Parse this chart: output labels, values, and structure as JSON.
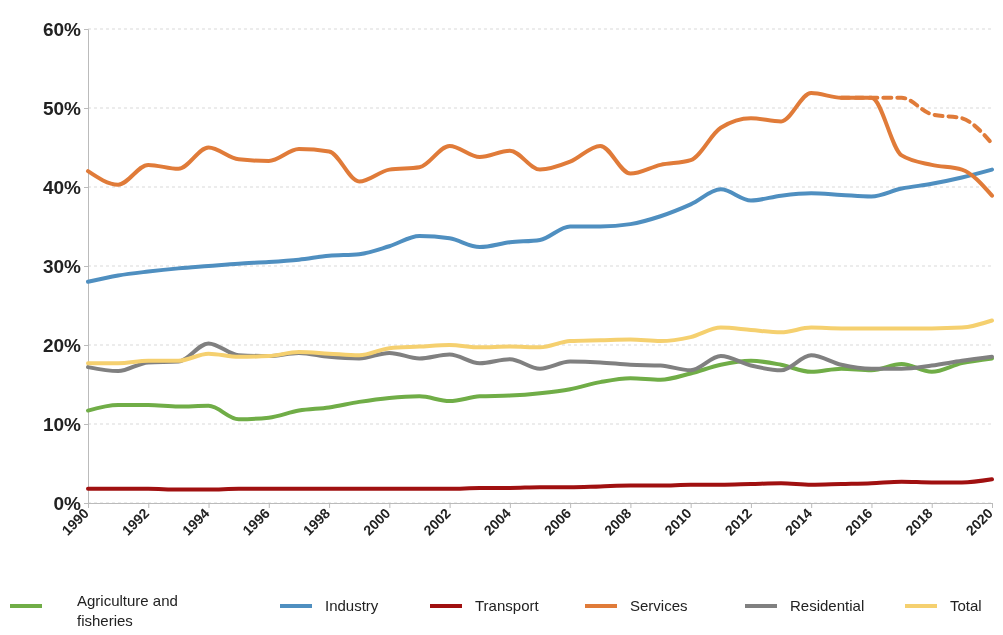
{
  "chart_data": {
    "type": "line",
    "x": [
      1990,
      1991,
      1992,
      1993,
      1994,
      1995,
      1996,
      1997,
      1998,
      1999,
      2000,
      2001,
      2002,
      2003,
      2004,
      2005,
      2006,
      2007,
      2008,
      2009,
      2010,
      2011,
      2012,
      2013,
      2014,
      2015,
      2016,
      2017,
      2018,
      2019,
      2020
    ],
    "xlim": [
      1990,
      2020
    ],
    "xticks": [
      1990,
      1992,
      1994,
      1996,
      1998,
      2000,
      2002,
      2004,
      2006,
      2008,
      2010,
      2012,
      2014,
      2016,
      2018,
      2020
    ],
    "ylim": [
      0,
      60
    ],
    "yticks": [
      {
        "value": 0,
        "label": "0%"
      },
      {
        "value": 10,
        "label": "10%"
      },
      {
        "value": 20,
        "label": "20%"
      },
      {
        "value": 30,
        "label": "30%"
      },
      {
        "value": 40,
        "label": "40%"
      },
      {
        "value": 50,
        "label": "50%"
      },
      {
        "value": 60,
        "label": "60%"
      }
    ],
    "grid": "y",
    "legend": "bottom",
    "marker": "none",
    "line_style": "solid",
    "series": [
      {
        "name": "Agriculture and fisheries",
        "color": "#70ad47",
        "values": [
          11.7,
          12.4,
          12.4,
          12.2,
          12.3,
          10.6,
          10.8,
          11.7,
          12.1,
          12.8,
          13.3,
          13.5,
          12.9,
          13.5,
          13.6,
          13.9,
          14.4,
          15.3,
          15.8,
          15.6,
          16.4,
          17.5,
          18,
          17.5,
          16.6,
          17,
          16.8,
          17.6,
          16.6,
          17.7,
          18.3
        ]
      },
      {
        "name": "Industry",
        "color": "#4f8fc0",
        "values": [
          28,
          28.8,
          29.3,
          29.7,
          30,
          30.3,
          30.5,
          30.8,
          31.3,
          31.5,
          32.5,
          33.8,
          33.5,
          32.4,
          33,
          33.3,
          35,
          35,
          35.3,
          36.3,
          37.8,
          39.7,
          38.3,
          38.9,
          39.2,
          39,
          38.8,
          39.8,
          40.4,
          41.2,
          42.2
        ]
      },
      {
        "name": "Transport",
        "color": "#a01010",
        "values": [
          1.8,
          1.8,
          1.8,
          1.7,
          1.7,
          1.8,
          1.8,
          1.8,
          1.8,
          1.8,
          1.8,
          1.8,
          1.8,
          1.9,
          1.9,
          2,
          2,
          2.1,
          2.2,
          2.2,
          2.3,
          2.3,
          2.4,
          2.5,
          2.3,
          2.4,
          2.5,
          2.7,
          2.6,
          2.6,
          3
        ]
      },
      {
        "name": "Services",
        "color": "#e07b39",
        "values": [
          42,
          40.3,
          42.8,
          42.3,
          45,
          43.5,
          43.3,
          44.8,
          44.5,
          40.7,
          42.2,
          42.5,
          45.2,
          43.8,
          44.6,
          42.2,
          43.2,
          45.2,
          41.7,
          42.8,
          43.4,
          47.5,
          48.7,
          48.3,
          51.9,
          51.3,
          51.3,
          44,
          42.8,
          42.2,
          38.9
        ]
      },
      {
        "color": "#e07b39",
        "line_style": "dashed",
        "x": [
          2015,
          2016,
          2017,
          2018,
          2019,
          2020
        ],
        "values": [
          51.3,
          51.3,
          51.3,
          49.2,
          48.7,
          45.5
        ]
      },
      {
        "name": "Residential",
        "color": "#808080",
        "values": [
          17.2,
          16.7,
          17.8,
          17.9,
          20.2,
          18.7,
          18.6,
          19,
          18.5,
          18.3,
          19,
          18.3,
          18.8,
          17.7,
          18.2,
          17,
          17.9,
          17.8,
          17.5,
          17.4,
          16.8,
          18.6,
          17.4,
          16.8,
          18.7,
          17.5,
          17,
          17,
          17.4,
          18,
          18.5
        ]
      },
      {
        "name": "Total",
        "color": "#f5d06f",
        "values": [
          17.7,
          17.7,
          18,
          18,
          18.9,
          18.5,
          18.6,
          19.1,
          18.9,
          18.7,
          19.6,
          19.8,
          20,
          19.7,
          19.8,
          19.7,
          20.5,
          20.6,
          20.7,
          20.5,
          21,
          22.2,
          21.9,
          21.6,
          22.2,
          22.1,
          22.1,
          22.1,
          22.1,
          22.2,
          23.1
        ]
      }
    ]
  }
}
